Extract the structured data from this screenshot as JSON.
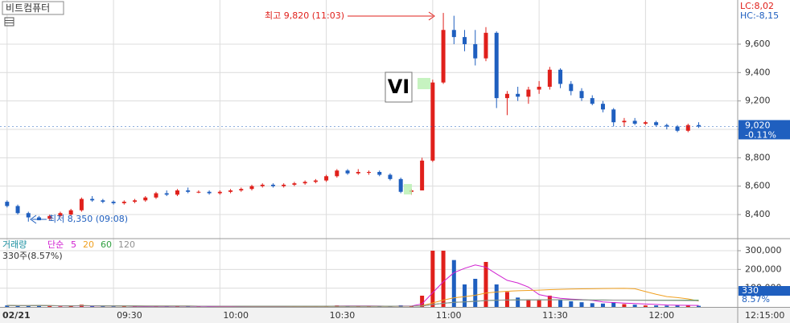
{
  "chart_data": {
    "type": "candlestick",
    "title": "비트컴퓨터",
    "lc_label": "LC:8,02",
    "hc_label": "HC:-8,15",
    "high_label": "최고 9,820 (11:03)",
    "low_label": "최저 8,350 (09:08)",
    "vi_label": "VI",
    "up_color": "#e0201b",
    "down_color": "#1f5fbf",
    "x": [
      0,
      3,
      6,
      9,
      12,
      15,
      18,
      21,
      24,
      27,
      30,
      33,
      36,
      39,
      42,
      45,
      48,
      51,
      54,
      57,
      60,
      63,
      66,
      69,
      72,
      75,
      78,
      81,
      84,
      87,
      90,
      93,
      96,
      99,
      102,
      105,
      108,
      111,
      114,
      117,
      120,
      123,
      126,
      129,
      132,
      135,
      138,
      141,
      144,
      147,
      150,
      153,
      156,
      159,
      162,
      165,
      168,
      171,
      174,
      177,
      180,
      183,
      186,
      189,
      192,
      195
    ],
    "open": [
      8490,
      8460,
      8410,
      8380,
      8370,
      8390,
      8400,
      8430,
      8510,
      8500,
      8490,
      8480,
      8490,
      8500,
      8520,
      8550,
      8540,
      8570,
      8560,
      8560,
      8550,
      8560,
      8570,
      8580,
      8600,
      8610,
      8600,
      8610,
      8620,
      8630,
      8640,
      8670,
      8710,
      8690,
      8700,
      8700,
      8680,
      8650,
      8560,
      8570,
      8780,
      9330,
      9700,
      9650,
      9600,
      9500,
      9680,
      9220,
      9250,
      9230,
      9280,
      9300,
      9420,
      9320,
      9270,
      9220,
      9180,
      9140,
      9050,
      9060,
      9040,
      9050,
      9030,
      9020,
      8990,
      9030
    ],
    "high": [
      8500,
      8470,
      8420,
      8390,
      8400,
      8420,
      8440,
      8520,
      8530,
      8510,
      8500,
      8500,
      8510,
      8530,
      8560,
      8570,
      8580,
      8590,
      8570,
      8570,
      8570,
      8580,
      8590,
      8610,
      8620,
      8620,
      8620,
      8630,
      8640,
      8650,
      8680,
      8720,
      8720,
      8720,
      8710,
      8710,
      8690,
      8660,
      8580,
      8800,
      9350,
      9820,
      9800,
      9700,
      9700,
      9720,
      9690,
      9270,
      9300,
      9300,
      9340,
      9440,
      9430,
      9340,
      9290,
      9240,
      9200,
      9150,
      9080,
      9080,
      9060,
      9060,
      9040,
      9030,
      9040,
      9050
    ],
    "low": [
      8450,
      8400,
      8350,
      8360,
      8360,
      8380,
      8390,
      8420,
      8490,
      8480,
      8470,
      8470,
      8480,
      8490,
      8510,
      8530,
      8530,
      8550,
      8550,
      8540,
      8540,
      8550,
      8560,
      8570,
      8590,
      8590,
      8590,
      8600,
      8610,
      8620,
      8630,
      8660,
      8680,
      8680,
      8680,
      8670,
      8640,
      8550,
      8540,
      8570,
      8770,
      9320,
      9600,
      9550,
      9450,
      9480,
      9150,
      9100,
      9200,
      9180,
      9250,
      9280,
      9290,
      9240,
      9200,
      9170,
      9120,
      9020,
      9020,
      9030,
      9030,
      9020,
      9000,
      8980,
      8980,
      9010
    ],
    "close": [
      8460,
      8410,
      8380,
      8360,
      8390,
      8410,
      8430,
      8510,
      8500,
      8490,
      8480,
      8490,
      8500,
      8520,
      8550,
      8540,
      8570,
      8560,
      8560,
      8550,
      8560,
      8570,
      8580,
      8600,
      8610,
      8600,
      8610,
      8620,
      8630,
      8640,
      8670,
      8710,
      8690,
      8700,
      8700,
      8680,
      8650,
      8560,
      8570,
      8780,
      9330,
      9700,
      9650,
      9600,
      9500,
      9680,
      9220,
      9250,
      9230,
      9280,
      9300,
      9420,
      9320,
      9270,
      9220,
      9180,
      9140,
      9050,
      9060,
      9040,
      9050,
      9030,
      9020,
      8990,
      9030,
      9020
    ],
    "volume": [
      8000,
      6000,
      7000,
      9000,
      4000,
      3000,
      5000,
      12000,
      4000,
      3000,
      2000,
      2000,
      2000,
      3000,
      4000,
      3000,
      3000,
      2000,
      2000,
      2000,
      2000,
      2000,
      2000,
      3000,
      3000,
      2000,
      2000,
      3000,
      3000,
      4000,
      6000,
      8000,
      5000,
      4000,
      3000,
      3000,
      5000,
      9000,
      4000,
      60000,
      300000,
      300000,
      250000,
      120000,
      150000,
      240000,
      120000,
      80000,
      50000,
      40000,
      40000,
      60000,
      40000,
      30000,
      25000,
      20000,
      18000,
      25000,
      15000,
      12000,
      8000,
      8000,
      7000,
      10000,
      9000,
      6000
    ],
    "xlim": [
      -2,
      206
    ],
    "xticks": [
      {
        "value": 0,
        "label": "02/21"
      },
      {
        "value": 30,
        "label": "09:30"
      },
      {
        "value": 60,
        "label": "10:00"
      },
      {
        "value": 90,
        "label": "10:30"
      },
      {
        "value": 120,
        "label": "11:00"
      },
      {
        "value": 150,
        "label": "11:30"
      },
      {
        "value": 180,
        "label": "12:00"
      }
    ],
    "time_label": "12:15:00",
    "ylim": [
      8236,
      9911
    ],
    "yticks": [
      {
        "value": 8400,
        "label": "8,400"
      },
      {
        "value": 8600,
        "label": "8,600"
      },
      {
        "value": 8800,
        "label": "8,800"
      },
      {
        "value": 9000,
        "label": "9,000"
      },
      {
        "value": 9200,
        "label": "9,200"
      },
      {
        "value": 9400,
        "label": "9,400"
      },
      {
        "value": 9600,
        "label": "9,600"
      }
    ],
    "current_price": {
      "value": 9020,
      "label": "9,020"
    },
    "current_change": "-0.11%",
    "volume_panel": {
      "title": "거래량",
      "ma_type": "단순",
      "ma_periods": [
        5,
        20,
        60,
        120
      ],
      "ma_colors": [
        "#d020d0",
        "#f0a020",
        "#30a040",
        "#909090"
      ],
      "ylim": [
        0,
        360000
      ],
      "yticks": [
        {
          "value": 100000,
          "label": "100,000"
        },
        {
          "value": 200000,
          "label": "200,000"
        },
        {
          "value": 300000,
          "label": "300,000"
        }
      ],
      "current": 330,
      "current_pct": "8.57%",
      "summary": "330주(8.57%)"
    }
  }
}
